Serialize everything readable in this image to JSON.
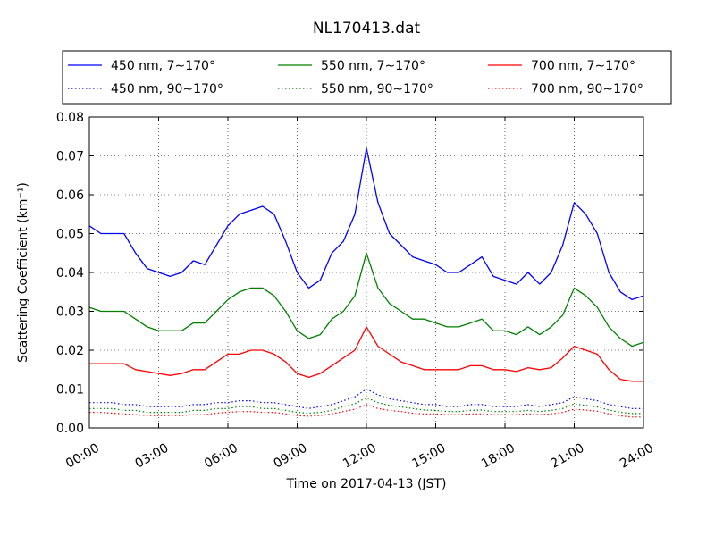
{
  "chart_data": {
    "type": "line",
    "title": "NL170413.dat",
    "xlabel": "Time on 2017-04-13 (JST)",
    "ylabel": "Scattering Coefficient (km⁻¹)",
    "xlim": [
      0,
      24
    ],
    "ylim": [
      0,
      0.08
    ],
    "x_ticks": [
      "00:00",
      "03:00",
      "06:00",
      "09:00",
      "12:00",
      "15:00",
      "18:00",
      "21:00",
      "24:00"
    ],
    "y_ticks": [
      "0.00",
      "0.01",
      "0.02",
      "0.03",
      "0.04",
      "0.05",
      "0.06",
      "0.07",
      "0.08"
    ],
    "grid": true,
    "legend_position": "top (above plot), 3 columns",
    "x": [
      0,
      0.5,
      1,
      1.5,
      2,
      2.5,
      3,
      3.5,
      4,
      4.5,
      5,
      5.5,
      6,
      6.5,
      7,
      7.5,
      8,
      8.5,
      9,
      9.5,
      10,
      10.5,
      11,
      11.5,
      12,
      12.5,
      13,
      13.5,
      14,
      14.5,
      15,
      15.5,
      16,
      16.5,
      17,
      17.5,
      18,
      18.5,
      19,
      19.5,
      20,
      20.5,
      21,
      21.5,
      22,
      22.5,
      23,
      23.5,
      24
    ],
    "series": [
      {
        "name": "450 nm, 7∼170°",
        "color": "#0000ff",
        "style": "solid",
        "values": [
          0.052,
          0.05,
          0.05,
          0.05,
          0.045,
          0.041,
          0.04,
          0.039,
          0.04,
          0.043,
          0.042,
          0.047,
          0.052,
          0.055,
          0.056,
          0.057,
          0.055,
          0.048,
          0.04,
          0.036,
          0.038,
          0.045,
          0.048,
          0.055,
          0.072,
          0.058,
          0.05,
          0.047,
          0.044,
          0.043,
          0.042,
          0.04,
          0.04,
          0.042,
          0.044,
          0.039,
          0.038,
          0.037,
          0.04,
          0.037,
          0.04,
          0.047,
          0.058,
          0.055,
          0.05,
          0.04,
          0.035,
          0.033,
          0.034
        ]
      },
      {
        "name": "450 nm, 90∼170°",
        "color": "#0000ff",
        "style": "dotted",
        "values": [
          0.0065,
          0.0065,
          0.0065,
          0.006,
          0.006,
          0.0055,
          0.0055,
          0.0055,
          0.0055,
          0.006,
          0.006,
          0.0065,
          0.0065,
          0.007,
          0.007,
          0.0065,
          0.0065,
          0.006,
          0.0055,
          0.005,
          0.0055,
          0.006,
          0.007,
          0.008,
          0.01,
          0.0085,
          0.0075,
          0.007,
          0.0065,
          0.006,
          0.006,
          0.0055,
          0.0055,
          0.006,
          0.006,
          0.0055,
          0.0055,
          0.0055,
          0.006,
          0.0055,
          0.006,
          0.0065,
          0.008,
          0.0075,
          0.007,
          0.006,
          0.0055,
          0.005,
          0.005
        ]
      },
      {
        "name": "550 nm, 7∼170°",
        "color": "#008000",
        "style": "solid",
        "values": [
          0.031,
          0.03,
          0.03,
          0.03,
          0.028,
          0.026,
          0.025,
          0.025,
          0.025,
          0.027,
          0.027,
          0.03,
          0.033,
          0.035,
          0.036,
          0.036,
          0.034,
          0.03,
          0.025,
          0.023,
          0.024,
          0.028,
          0.03,
          0.034,
          0.045,
          0.036,
          0.032,
          0.03,
          0.028,
          0.028,
          0.027,
          0.026,
          0.026,
          0.027,
          0.028,
          0.025,
          0.025,
          0.024,
          0.026,
          0.024,
          0.026,
          0.029,
          0.036,
          0.034,
          0.031,
          0.026,
          0.023,
          0.021,
          0.022
        ]
      },
      {
        "name": "550 nm, 90∼170°",
        "color": "#008000",
        "style": "dotted",
        "values": [
          0.005,
          0.005,
          0.005,
          0.0045,
          0.0045,
          0.004,
          0.004,
          0.004,
          0.004,
          0.0045,
          0.0045,
          0.005,
          0.005,
          0.0055,
          0.0055,
          0.005,
          0.005,
          0.0045,
          0.004,
          0.0038,
          0.004,
          0.0045,
          0.0055,
          0.0062,
          0.0078,
          0.0065,
          0.0058,
          0.0054,
          0.005,
          0.0046,
          0.0045,
          0.0042,
          0.0042,
          0.0045,
          0.0046,
          0.0042,
          0.0042,
          0.0042,
          0.0045,
          0.0042,
          0.0045,
          0.005,
          0.0062,
          0.0058,
          0.0054,
          0.0046,
          0.004,
          0.0037,
          0.0037
        ]
      },
      {
        "name": "700 nm, 7∼170°",
        "color": "#ff0000",
        "style": "solid",
        "values": [
          0.0165,
          0.0165,
          0.0165,
          0.0165,
          0.015,
          0.0145,
          0.014,
          0.0135,
          0.014,
          0.015,
          0.015,
          0.017,
          0.019,
          0.019,
          0.02,
          0.02,
          0.019,
          0.017,
          0.014,
          0.013,
          0.014,
          0.016,
          0.018,
          0.02,
          0.026,
          0.021,
          0.019,
          0.017,
          0.016,
          0.015,
          0.015,
          0.015,
          0.015,
          0.016,
          0.016,
          0.015,
          0.015,
          0.0145,
          0.0155,
          0.015,
          0.0155,
          0.018,
          0.021,
          0.02,
          0.019,
          0.015,
          0.0125,
          0.012,
          0.012
        ]
      },
      {
        "name": "700 nm, 90∼170°",
        "color": "#ff0000",
        "style": "dotted",
        "values": [
          0.004,
          0.004,
          0.0038,
          0.0036,
          0.0034,
          0.0032,
          0.0032,
          0.0032,
          0.0032,
          0.0034,
          0.0034,
          0.0038,
          0.004,
          0.0042,
          0.0042,
          0.004,
          0.004,
          0.0036,
          0.0032,
          0.003,
          0.0032,
          0.0036,
          0.0042,
          0.0048,
          0.006,
          0.005,
          0.0045,
          0.0042,
          0.0038,
          0.0036,
          0.0036,
          0.0034,
          0.0034,
          0.0036,
          0.0036,
          0.0034,
          0.0034,
          0.0034,
          0.0036,
          0.0034,
          0.0036,
          0.004,
          0.0048,
          0.0046,
          0.0043,
          0.0036,
          0.0031,
          0.0028,
          0.0028
        ]
      }
    ]
  }
}
